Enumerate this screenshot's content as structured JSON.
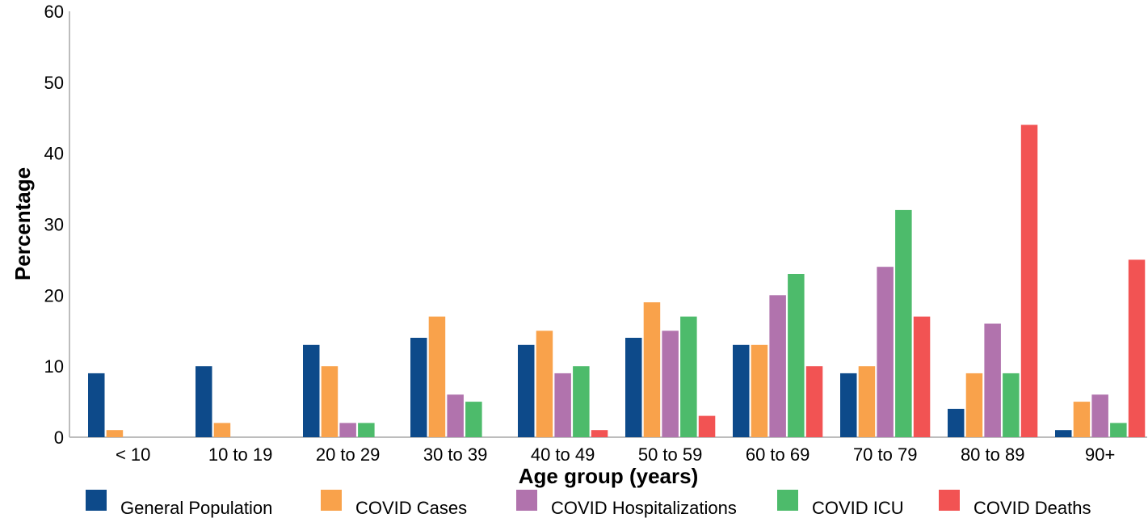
{
  "chart_data": {
    "type": "bar",
    "xlabel": "Age group (years)",
    "ylabel": "Percentage",
    "ylim": [
      0,
      60
    ],
    "yticks": [
      0,
      10,
      20,
      30,
      40,
      50,
      60
    ],
    "grid": false,
    "legend_position": "bottom",
    "categories": [
      "< 10",
      "10 to 19",
      "20 to 29",
      "30 to 39",
      "40 to 49",
      "50 to 59",
      "60 to 69",
      "70 to 79",
      "80 to 89",
      "90+"
    ],
    "series": [
      {
        "name": "General Population",
        "color": "#0d4a8a",
        "values": [
          9,
          10,
          13,
          14,
          13,
          14,
          13,
          9,
          4,
          1
        ]
      },
      {
        "name": "COVID Cases",
        "color": "#f9a24b",
        "values": [
          1,
          2,
          10,
          17,
          15,
          19,
          13,
          10,
          9,
          5
        ]
      },
      {
        "name": "COVID Hospitalizations",
        "color": "#b173ad",
        "values": [
          0,
          0,
          2,
          6,
          9,
          15,
          20,
          24,
          16,
          6
        ]
      },
      {
        "name": "COVID ICU",
        "color": "#4dbb6b",
        "values": [
          0,
          0,
          2,
          5,
          10,
          17,
          23,
          32,
          9,
          2
        ]
      },
      {
        "name": "COVID Deaths",
        "color": "#f25353",
        "values": [
          0,
          0,
          0,
          0,
          1,
          3,
          10,
          17,
          44,
          25
        ]
      }
    ]
  }
}
